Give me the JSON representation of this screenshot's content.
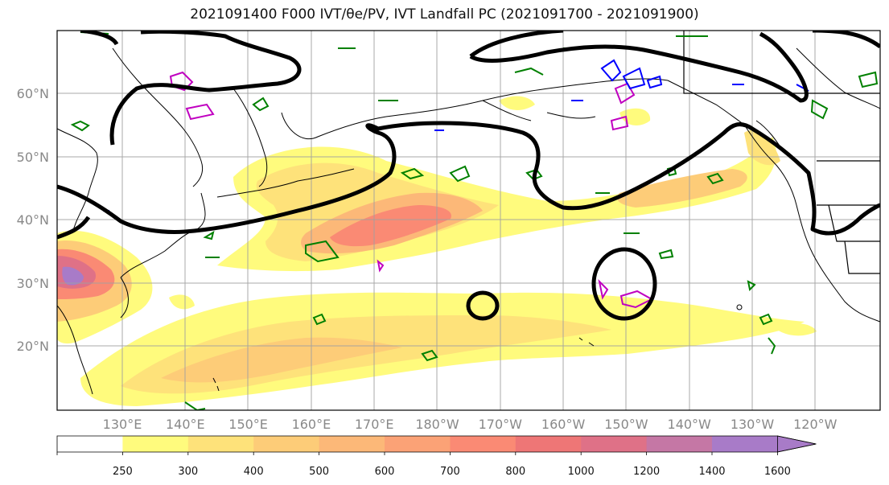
{
  "title": "2021091400 F000 IVT/θe/PV, IVT Landfall PC (2021091700 - 2021091900)",
  "map": {
    "lon_labels": [
      "130°E",
      "140°E",
      "150°E",
      "160°E",
      "170°E",
      "180°W",
      "170°W",
      "160°W",
      "150°W",
      "140°W",
      "130°W",
      "120°W"
    ],
    "lat_labels": [
      "60°N",
      "50°N",
      "40°N",
      "30°N",
      "20°N"
    ]
  },
  "colorbar": {
    "levels": [
      "250",
      "300",
      "400",
      "500",
      "600",
      "700",
      "800",
      "1000",
      "1200",
      "1400",
      "1600"
    ],
    "colors": [
      "#ffffff",
      "#fffb7d",
      "#fee27a",
      "#fdcc78",
      "#fcb878",
      "#fba276",
      "#fa8a74",
      "#ee7676",
      "#df7187",
      "#c577a5",
      "#a87bc8"
    ]
  },
  "colors": {
    "black_contour": "#000000",
    "green_contour": "#008000",
    "magenta_contour": "#c000c0",
    "blue_contour": "#0000ff",
    "graticule": "#a0a0a0"
  }
}
